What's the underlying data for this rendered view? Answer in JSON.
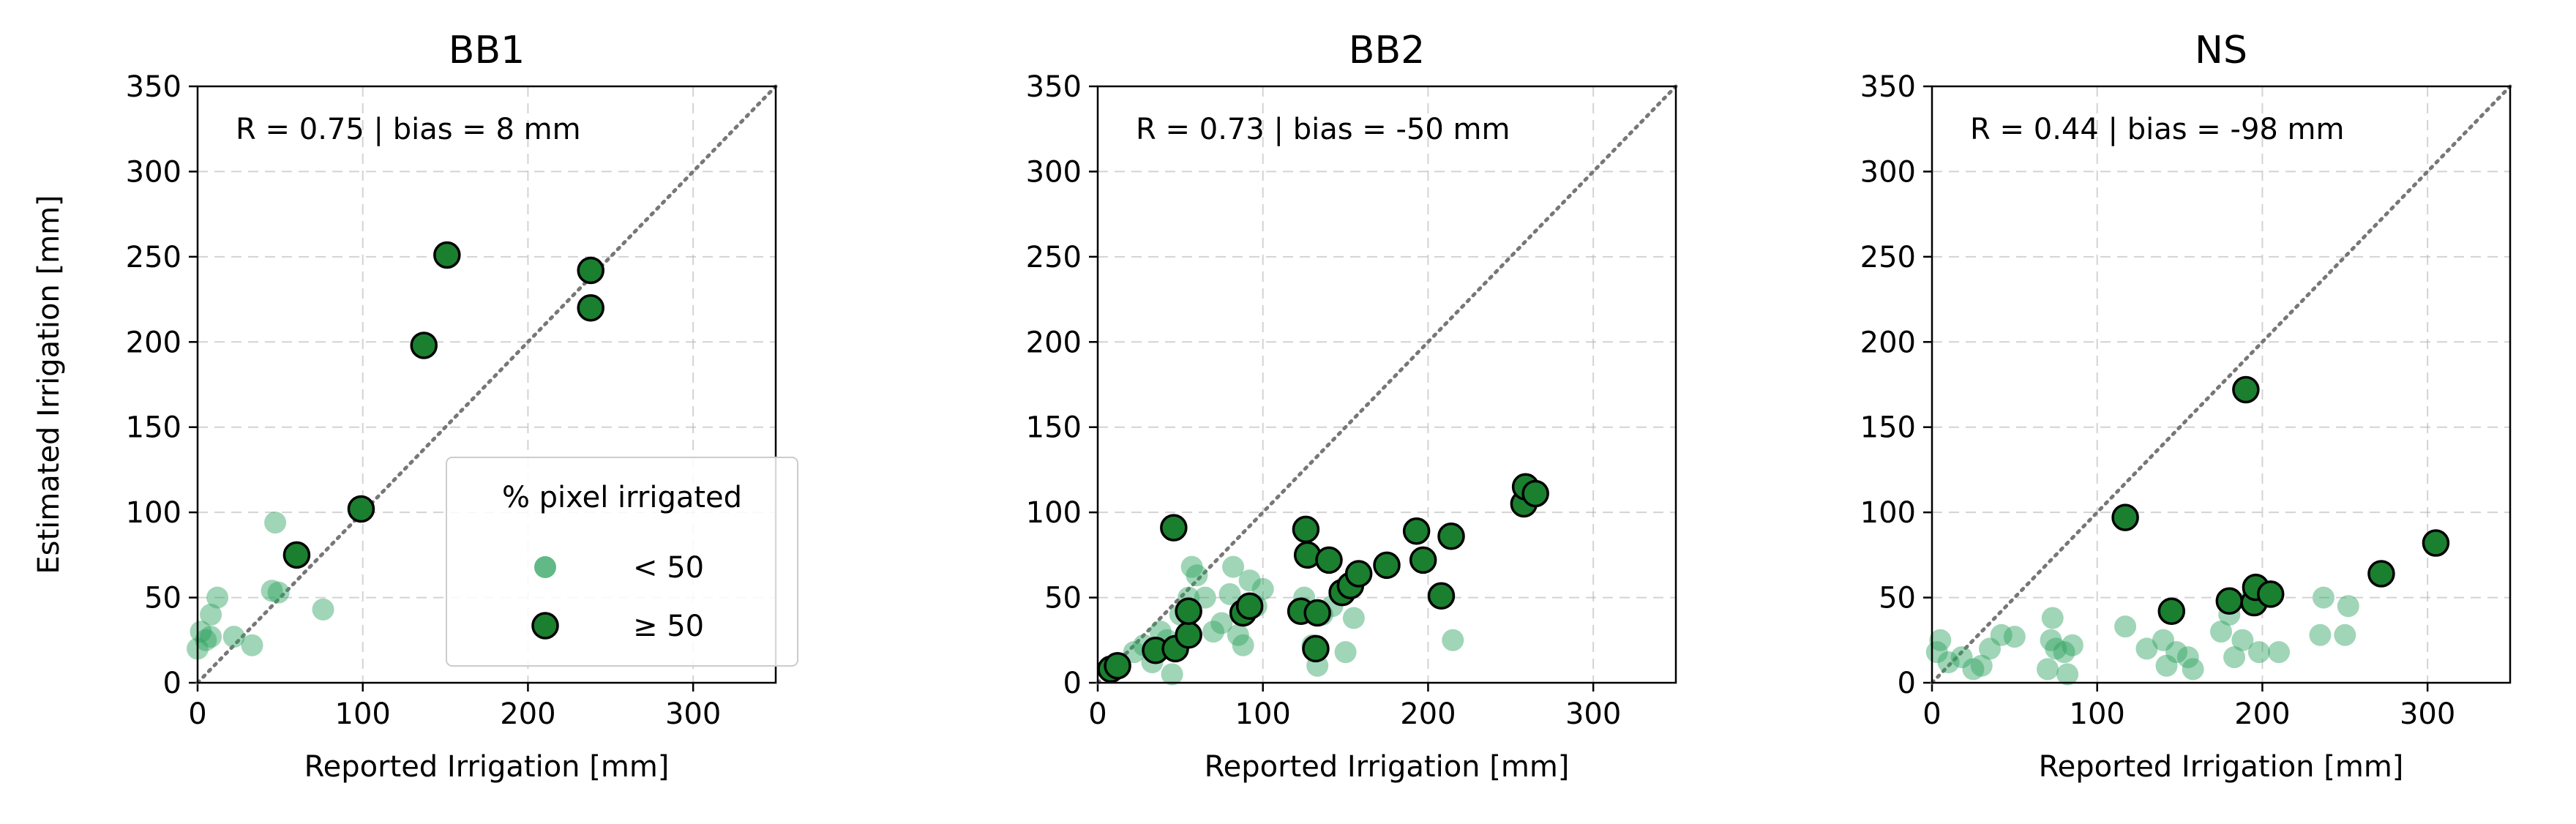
{
  "chart_data": [
    {
      "type": "scatter",
      "title": "BB1",
      "annotation": "R = 0.75 | bias = 8 mm",
      "xlabel": "Reported Irrigation [mm]",
      "ylabel": "Estimated Irrigation [mm]",
      "xlim": [
        0,
        350
      ],
      "ylim": [
        0,
        350
      ],
      "xticks": [
        "0",
        "100",
        "200",
        "300"
      ],
      "yticks": [
        "0",
        "50",
        "100",
        "150",
        "200",
        "250",
        "300",
        "350"
      ],
      "grid": true,
      "one_to_one_line": true,
      "legend": {
        "title": "% pixel irrigated",
        "entries": [
          "< 50",
          "≥ 50"
        ],
        "position": "lower-right"
      },
      "series": [
        {
          "name": "< 50",
          "color": "#2ca25f",
          "points": [
            [
              0,
              20
            ],
            [
              2,
              30
            ],
            [
              5,
              25
            ],
            [
              8,
              40
            ],
            [
              12,
              50
            ],
            [
              8,
              27
            ],
            [
              22,
              27
            ],
            [
              33,
              22
            ],
            [
              45,
              54
            ],
            [
              47,
              94
            ],
            [
              49,
              53
            ],
            [
              76,
              43
            ]
          ]
        },
        {
          "name": "≥ 50",
          "color": "#1a7f2e",
          "points": [
            [
              60,
              75
            ],
            [
              99,
              102
            ],
            [
              137,
              198
            ],
            [
              151,
              251
            ],
            [
              238,
              220
            ],
            [
              238,
              242
            ]
          ]
        }
      ]
    },
    {
      "type": "scatter",
      "title": "BB2",
      "annotation": "R = 0.73 | bias = -50 mm",
      "xlabel": "Reported Irrigation [mm]",
      "ylabel": "",
      "xlim": [
        0,
        350
      ],
      "ylim": [
        0,
        350
      ],
      "xticks": [
        "0",
        "100",
        "200",
        "300"
      ],
      "yticks": [
        "0",
        "50",
        "100",
        "150",
        "200",
        "250",
        "300",
        "350"
      ],
      "grid": true,
      "one_to_one_line": true,
      "series": [
        {
          "name": "< 50",
          "color": "#2ca25f",
          "points": [
            [
              12,
              10
            ],
            [
              22,
              18
            ],
            [
              28,
              22
            ],
            [
              33,
              12
            ],
            [
              38,
              30
            ],
            [
              42,
              25
            ],
            [
              45,
              5
            ],
            [
              50,
              40
            ],
            [
              55,
              50
            ],
            [
              57,
              68
            ],
            [
              60,
              63
            ],
            [
              65,
              50
            ],
            [
              70,
              30
            ],
            [
              75,
              35
            ],
            [
              80,
              52
            ],
            [
              82,
              68
            ],
            [
              85,
              28
            ],
            [
              88,
              22
            ],
            [
              92,
              60
            ],
            [
              96,
              45
            ],
            [
              100,
              55
            ],
            [
              125,
              50
            ],
            [
              130,
              22
            ],
            [
              133,
              10
            ],
            [
              136,
              40
            ],
            [
              142,
              45
            ],
            [
              150,
              18
            ],
            [
              155,
              38
            ],
            [
              215,
              25
            ]
          ]
        },
        {
          "name": "≥ 50",
          "color": "#1a7f2e",
          "points": [
            [
              8,
              8
            ],
            [
              12,
              10
            ],
            [
              35,
              19
            ],
            [
              46,
              91
            ],
            [
              47,
              20
            ],
            [
              55,
              28
            ],
            [
              55,
              42
            ],
            [
              88,
              41
            ],
            [
              92,
              45
            ],
            [
              123,
              42
            ],
            [
              126,
              90
            ],
            [
              127,
              75
            ],
            [
              132,
              20
            ],
            [
              133,
              41
            ],
            [
              140,
              72
            ],
            [
              148,
              53
            ],
            [
              153,
              57
            ],
            [
              158,
              64
            ],
            [
              175,
              69
            ],
            [
              193,
              89
            ],
            [
              197,
              72
            ],
            [
              208,
              51
            ],
            [
              214,
              86
            ],
            [
              258,
              105
            ],
            [
              259,
              115
            ],
            [
              265,
              111
            ]
          ]
        }
      ]
    },
    {
      "type": "scatter",
      "title": "NS",
      "annotation": "R = 0.44 | bias = -98 mm",
      "xlabel": "Reported Irrigation [mm]",
      "ylabel": "",
      "xlim": [
        0,
        350
      ],
      "ylim": [
        0,
        350
      ],
      "xticks": [
        "0",
        "100",
        "200",
        "300"
      ],
      "yticks": [
        "0",
        "50",
        "100",
        "150",
        "200",
        "250",
        "300",
        "350"
      ],
      "grid": true,
      "one_to_one_line": true,
      "series": [
        {
          "name": "< 50",
          "color": "#2ca25f",
          "points": [
            [
              3,
              18
            ],
            [
              5,
              25
            ],
            [
              10,
              12
            ],
            [
              18,
              15
            ],
            [
              25,
              8
            ],
            [
              30,
              10
            ],
            [
              35,
              20
            ],
            [
              42,
              28
            ],
            [
              50,
              27
            ],
            [
              70,
              8
            ],
            [
              72,
              25
            ],
            [
              73,
              38
            ],
            [
              75,
              20
            ],
            [
              80,
              18
            ],
            [
              82,
              5
            ],
            [
              85,
              22
            ],
            [
              117,
              33
            ],
            [
              130,
              20
            ],
            [
              140,
              25
            ],
            [
              142,
              10
            ],
            [
              148,
              18
            ],
            [
              155,
              15
            ],
            [
              158,
              8
            ],
            [
              175,
              30
            ],
            [
              180,
              40
            ],
            [
              183,
              15
            ],
            [
              188,
              25
            ],
            [
              192,
              48
            ],
            [
              198,
              18
            ],
            [
              210,
              18
            ],
            [
              235,
              28
            ],
            [
              237,
              50
            ],
            [
              250,
              28
            ],
            [
              252,
              45
            ]
          ]
        },
        {
          "name": "≥ 50",
          "color": "#1a7f2e",
          "points": [
            [
              117,
              97
            ],
            [
              145,
              42
            ],
            [
              180,
              48
            ],
            [
              190,
              172
            ],
            [
              195,
              47
            ],
            [
              196,
              56
            ],
            [
              205,
              52
            ],
            [
              272,
              64
            ],
            [
              305,
              82
            ]
          ]
        }
      ]
    }
  ]
}
